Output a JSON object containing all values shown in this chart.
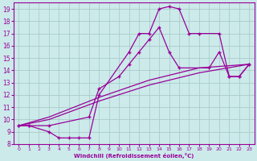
{
  "xlabel": "Windchill (Refroidissement éolien,°C)",
  "bg_color": "#cceaea",
  "line_color": "#990099",
  "grid_color": "#aacccc",
  "xlim": [
    -0.5,
    23.5
  ],
  "ylim": [
    8,
    19.5
  ],
  "xticks": [
    0,
    1,
    2,
    3,
    4,
    5,
    6,
    7,
    8,
    9,
    10,
    11,
    12,
    13,
    14,
    15,
    16,
    17,
    18,
    19,
    20,
    21,
    22,
    23
  ],
  "yticks": [
    8,
    9,
    10,
    11,
    12,
    13,
    14,
    15,
    16,
    17,
    18,
    19
  ],
  "line1_x": [
    0,
    1,
    3,
    4,
    5,
    6,
    7,
    8,
    11,
    12,
    13,
    14,
    15,
    16,
    17,
    18,
    20,
    21,
    22,
    23
  ],
  "line1_y": [
    9.5,
    9.5,
    9.0,
    8.5,
    8.5,
    8.5,
    8.5,
    12.0,
    15.5,
    17.0,
    17.0,
    19.0,
    19.2,
    19.0,
    17.0,
    17.0,
    17.0,
    13.5,
    13.5,
    14.5
  ],
  "line2_x": [
    0,
    1,
    3,
    7,
    8,
    10,
    11,
    12,
    13,
    14,
    15,
    16,
    19,
    20,
    21,
    22,
    23
  ],
  "line2_y": [
    9.5,
    9.5,
    9.5,
    10.2,
    12.5,
    13.5,
    14.5,
    15.5,
    16.5,
    17.5,
    15.5,
    14.2,
    14.2,
    15.5,
    13.5,
    13.5,
    14.5
  ],
  "line3_x": [
    0,
    3,
    8,
    13,
    18,
    23
  ],
  "line3_y": [
    9.5,
    10.0,
    11.5,
    12.8,
    13.8,
    14.5
  ],
  "line4_x": [
    0,
    3,
    8,
    13,
    18,
    23
  ],
  "line4_y": [
    9.5,
    10.2,
    11.8,
    13.2,
    14.2,
    14.5
  ]
}
